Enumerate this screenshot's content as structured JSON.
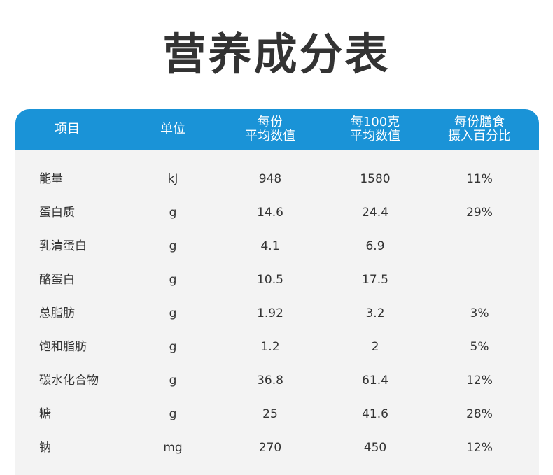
{
  "title": "营养成分表",
  "table": {
    "headers": [
      {
        "line1": "项目",
        "line2": ""
      },
      {
        "line1": "单位",
        "line2": ""
      },
      {
        "line1": "每份",
        "line2": "平均数值"
      },
      {
        "line1": "每100克",
        "line2": "平均数值"
      },
      {
        "line1": "每份膳食",
        "line2": "摄入百分比"
      }
    ],
    "rows": [
      {
        "name": "能量",
        "unit": "kJ",
        "per_serving": "948",
        "per_100g": "1580",
        "percent": "11%"
      },
      {
        "name": "蛋白质",
        "unit": "g",
        "per_serving": "14.6",
        "per_100g": "24.4",
        "percent": "29%"
      },
      {
        "name": "乳清蛋白",
        "unit": "g",
        "per_serving": "4.1",
        "per_100g": "6.9",
        "percent": ""
      },
      {
        "name": "酪蛋白",
        "unit": "g",
        "per_serving": "10.5",
        "per_100g": "17.5",
        "percent": ""
      },
      {
        "name": "总脂肪",
        "unit": "g",
        "per_serving": "1.92",
        "per_100g": "3.2",
        "percent": "3%"
      },
      {
        "name": "饱和脂肪",
        "unit": "g",
        "per_serving": "1.2",
        "per_100g": "2",
        "percent": "5%"
      },
      {
        "name": "碳水化合物",
        "unit": "g",
        "per_serving": "36.8",
        "per_100g": "61.4",
        "percent": "12%"
      },
      {
        "name": "糖",
        "unit": "g",
        "per_serving": "25",
        "per_100g": "41.6",
        "percent": "28%"
      },
      {
        "name": "钠",
        "unit": "mg",
        "per_serving": "270",
        "per_100g": "450",
        "percent": "12%"
      }
    ]
  },
  "colors": {
    "header_bg": "#1a93d7",
    "body_bg": "#f3f3f3",
    "text": "#333333"
  }
}
